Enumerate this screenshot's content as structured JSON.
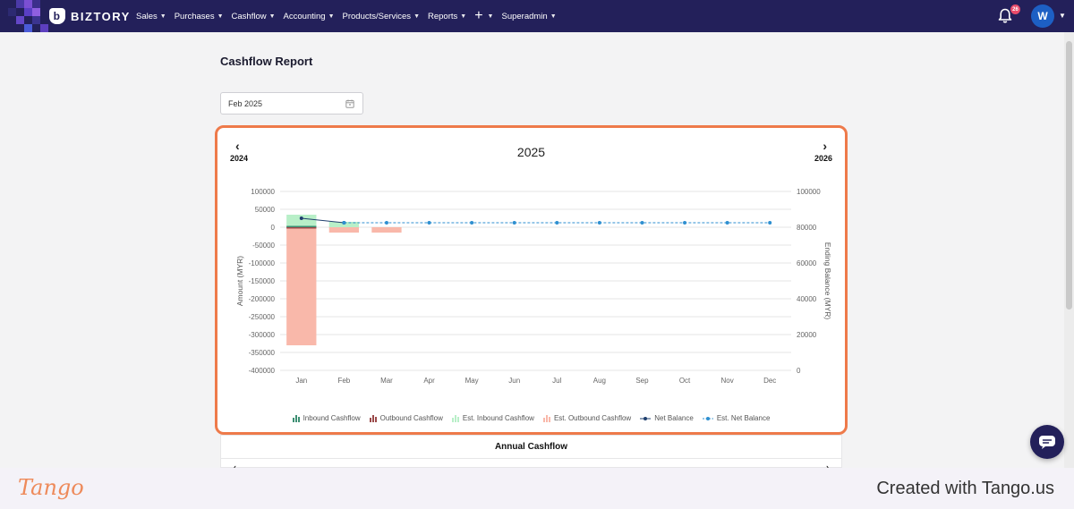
{
  "app": {
    "brand": "BIZTORY",
    "colors": {
      "nav_bg": "#23205a",
      "accent": "#ee7a4a",
      "avatar_bg": "#1d5fc4",
      "badge": "#e84b6a"
    }
  },
  "nav": {
    "items": [
      {
        "label": "Sales"
      },
      {
        "label": "Purchases"
      },
      {
        "label": "Cashflow"
      },
      {
        "label": "Accounting"
      },
      {
        "label": "Products/Services"
      },
      {
        "label": "Reports"
      },
      {
        "label": "+"
      },
      {
        "label": "Superadmin"
      }
    ],
    "notification_count": "26",
    "avatar_initial": "W",
    "icons": [
      "bell-icon",
      "plus-icon",
      "chevron-down-icon"
    ]
  },
  "page": {
    "title": "Cashflow Report",
    "date_value": "Feb 2025"
  },
  "year_nav": {
    "prev_label": "2024",
    "current_label": "2025",
    "next_label": "2026",
    "prev_arrow": "‹",
    "next_arrow": "›"
  },
  "chart_data": {
    "type": "bar",
    "categories": [
      "Jan",
      "Feb",
      "Mar",
      "Apr",
      "May",
      "Jun",
      "Jul",
      "Aug",
      "Sep",
      "Oct",
      "Nov",
      "Dec"
    ],
    "ylabel": "Amount (MYR)",
    "y2label": "Ending Balance (MYR)",
    "ylim": [
      -400000,
      100000
    ],
    "y2lim": [
      0,
      100000
    ],
    "yticks": [
      "100000",
      "50000",
      "0",
      "-50000",
      "-100000",
      "-150000",
      "-200000",
      "-250000",
      "-300000",
      "-350000",
      "-400000"
    ],
    "y2ticks": [
      "100000",
      "80000",
      "60000",
      "40000",
      "20000",
      "0"
    ],
    "grid": true,
    "legend_position": "bottom",
    "series": [
      {
        "name": "Inbound Cashflow",
        "kind": "bar",
        "color": "#3d8f73",
        "values": [
          2000,
          0,
          0,
          0,
          0,
          0,
          0,
          0,
          0,
          0,
          0,
          0
        ]
      },
      {
        "name": "Outbound Cashflow",
        "kind": "bar",
        "color": "#9b4a4a",
        "values": [
          -2000,
          0,
          0,
          0,
          0,
          0,
          0,
          0,
          0,
          0,
          0,
          0
        ]
      },
      {
        "name": "Est. Inbound Cashflow",
        "kind": "bar",
        "color": "#b8efc8",
        "values": [
          35000,
          15000,
          0,
          0,
          0,
          0,
          0,
          0,
          0,
          0,
          0,
          0
        ]
      },
      {
        "name": "Est. Outbound Cashflow",
        "kind": "bar",
        "color": "#f9b8aa",
        "values": [
          -330000,
          -15000,
          -15000,
          0,
          0,
          0,
          0,
          0,
          0,
          0,
          0,
          0
        ]
      },
      {
        "name": "Net Balance",
        "kind": "line",
        "axis": "y2",
        "color": "#1f3f6e",
        "values": [
          85000,
          82500,
          null,
          null,
          null,
          null,
          null,
          null,
          null,
          null,
          null,
          null
        ]
      },
      {
        "name": "Est. Net Balance",
        "kind": "line",
        "axis": "y2",
        "dashed": true,
        "color": "#2e8fd0",
        "values": [
          null,
          82500,
          82500,
          82500,
          82500,
          82500,
          82500,
          82500,
          82500,
          82500,
          82500,
          82500
        ]
      }
    ]
  },
  "annual": {
    "title": "Annual Cashflow",
    "prev_arrow": "‹",
    "next_arrow": "›"
  },
  "footer": {
    "logo": "Tango",
    "credit": "Created with Tango.us"
  }
}
